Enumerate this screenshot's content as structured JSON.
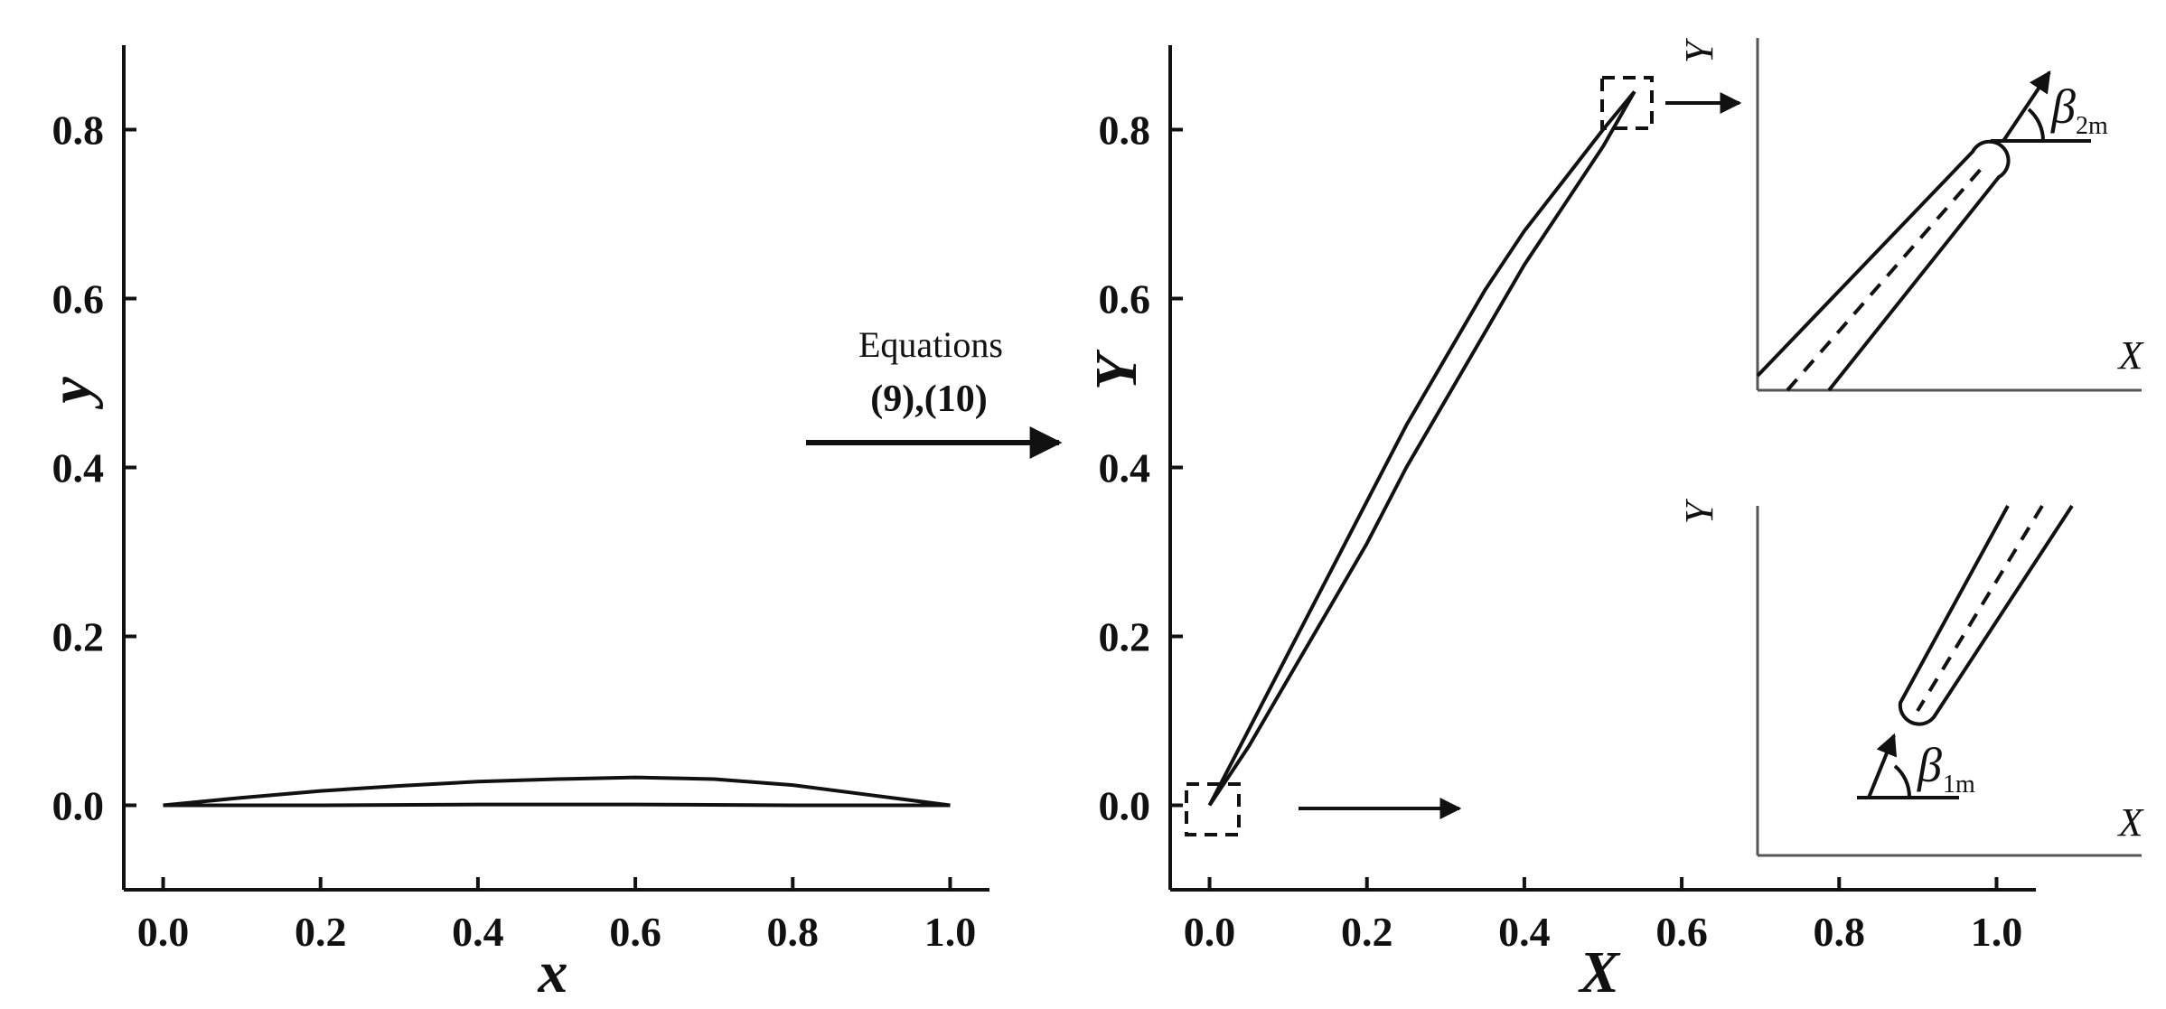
{
  "chart_data": [
    {
      "type": "line",
      "xlabel": "x",
      "ylabel": "y",
      "xlim": [
        -0.05,
        1.05
      ],
      "ylim": [
        -0.1,
        0.9
      ],
      "xticks": [
        "0.0",
        "0.2",
        "0.4",
        "0.6",
        "0.8",
        "1.0"
      ],
      "yticks": [
        "0.0",
        "0.2",
        "0.4",
        "0.6",
        "0.8"
      ],
      "grid": false,
      "series": [
        {
          "x": [
            0.0,
            0.1,
            0.2,
            0.3,
            0.4,
            0.5,
            0.6,
            0.7,
            0.8,
            0.9,
            1.0
          ],
          "y": [
            0.0,
            0.009,
            0.017,
            0.023,
            0.028,
            0.031,
            0.033,
            0.031,
            0.024,
            0.012,
            0.0
          ]
        },
        {
          "x": [
            0.0,
            0.2,
            0.4,
            0.6,
            0.8,
            1.0
          ],
          "y": [
            0.0,
            0.0,
            0.001,
            0.001,
            0.0,
            0.0
          ]
        }
      ]
    },
    {
      "type": "line",
      "xlabel": "X",
      "ylabel": "Y",
      "xlim": [
        -0.05,
        1.05
      ],
      "ylim": [
        -0.1,
        0.9
      ],
      "xticks": [
        "0.0",
        "0.2",
        "0.4",
        "0.6",
        "0.8",
        "1.0"
      ],
      "yticks": [
        "0.0",
        "0.2",
        "0.4",
        "0.6",
        "0.8"
      ],
      "grid": false,
      "series": [
        {
          "x": [
            0.0,
            0.05,
            0.1,
            0.15,
            0.2,
            0.25,
            0.3,
            0.35,
            0.4,
            0.45,
            0.5,
            0.54
          ],
          "y": [
            0.0,
            0.09,
            0.18,
            0.27,
            0.36,
            0.45,
            0.53,
            0.61,
            0.68,
            0.74,
            0.8,
            0.845
          ]
        },
        {
          "x": [
            0.0,
            0.05,
            0.1,
            0.15,
            0.2,
            0.25,
            0.3,
            0.35,
            0.4,
            0.45,
            0.5,
            0.54
          ],
          "y": [
            0.0,
            0.07,
            0.15,
            0.23,
            0.31,
            0.4,
            0.48,
            0.56,
            0.64,
            0.71,
            0.78,
            0.845
          ]
        }
      ]
    }
  ],
  "transform": {
    "label": "Equations",
    "equations": "(9),(10)"
  },
  "insets": {
    "top": {
      "ylabel": "Y",
      "xlabel": "X",
      "angle_symbol": "β",
      "angle_sub": "2m"
    },
    "bottom": {
      "ylabel": "Y",
      "xlabel": "X",
      "angle_symbol": "β",
      "angle_sub": "1m"
    }
  }
}
